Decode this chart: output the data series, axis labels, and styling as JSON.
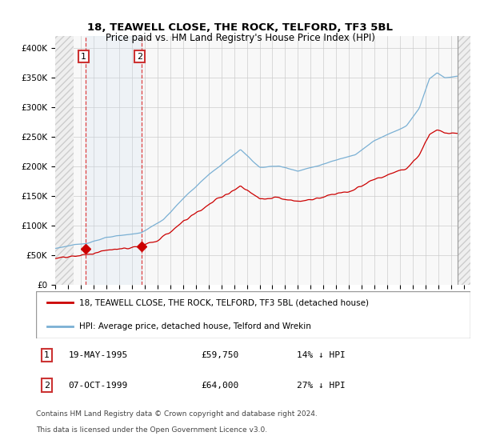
{
  "title": "18, TEAWELL CLOSE, THE ROCK, TELFORD, TF3 5BL",
  "subtitle": "Price paid vs. HM Land Registry's House Price Index (HPI)",
  "sale1_year": 1995.38,
  "sale2_year": 1999.77,
  "sale1_price": 59750,
  "sale2_price": 64000,
  "legend_line1": "18, TEAWELL CLOSE, THE ROCK, TELFORD, TF3 5BL (detached house)",
  "legend_line2": "HPI: Average price, detached house, Telford and Wrekin",
  "red_color": "#cc0000",
  "blue_color": "#7ab0d4",
  "bg_color": "#ffffff",
  "grid_color": "#cccccc",
  "shade_color": "#ddeeff",
  "plot_bg": "#f5f5f5",
  "ylim_max": 420000,
  "xmin": 1993.0,
  "xmax": 2025.5,
  "hatch_left_end": 1994.42,
  "hatch_right_start": 2024.5,
  "yticks": [
    0,
    50000,
    100000,
    150000,
    200000,
    250000,
    300000,
    350000,
    400000
  ],
  "ylabels": [
    "£0",
    "£50K",
    "£100K",
    "£150K",
    "£200K",
    "£250K",
    "£300K",
    "£350K",
    "£400K"
  ]
}
